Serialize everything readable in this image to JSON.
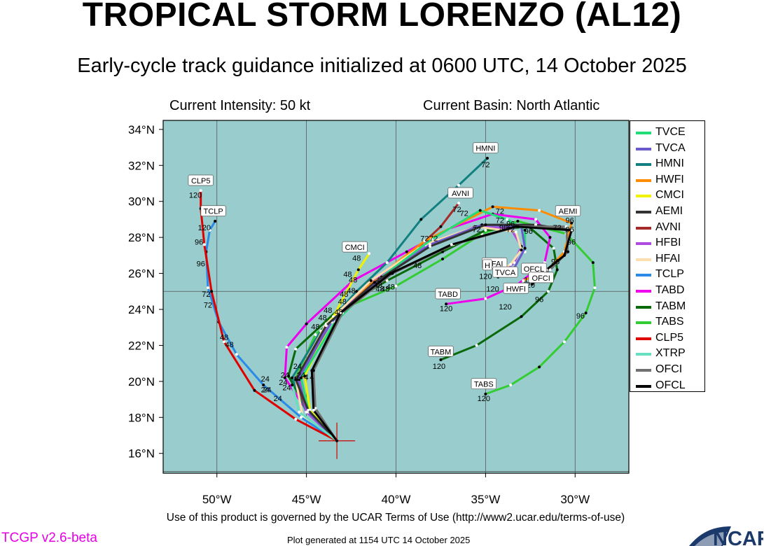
{
  "title": "TROPICAL STORM LORENZO (AL12)",
  "subtitle": "Early-cycle track guidance initialized at 0600 UTC, 14 October 2025",
  "current_intensity": "Current Intensity: 50 kt",
  "current_basin": "Current Basin: North Atlantic",
  "terms": "Use of this product is governed by the UCAR Terms of Use (http://www2.ucar.edu/terms-of-use)",
  "version": "TCGP v2.6-beta",
  "generated": "Plot generated at 1154 UTC   14 October 2025",
  "logo_text": "NCAR",
  "colors": {
    "ocean": "#99cccc",
    "grid": "#555555",
    "storm_marker": "#d00000"
  },
  "map": {
    "lon_ticks": [
      -50,
      -45,
      -40,
      -35,
      -30
    ],
    "lon_labels": [
      "50°W",
      "45°W",
      "40°W",
      "35°W",
      "30°W"
    ],
    "lat_ticks": [
      16,
      18,
      20,
      22,
      24,
      26,
      28,
      30,
      32,
      34
    ],
    "lat_labels": [
      "16°N",
      "18°N",
      "20°N",
      "22°N",
      "24°N",
      "26°N",
      "28°N",
      "30°N",
      "32°N",
      "34°N"
    ],
    "lon_range": [
      -53,
      -27
    ],
    "lat_range": [
      14.9,
      34.5
    ],
    "gridlines": {
      "lon": [
        -50,
        -45,
        -40,
        -35,
        -30
      ],
      "lat": [
        15,
        25
      ]
    },
    "initial_position": {
      "lon": -43.3,
      "lat": 16.7
    }
  },
  "legend": [
    {
      "name": "TVCE",
      "color": "#22dd77"
    },
    {
      "name": "TVCA",
      "color": "#6a5acd"
    },
    {
      "name": "HMNI",
      "color": "#128080"
    },
    {
      "name": "HWFI",
      "color": "#ff8c00"
    },
    {
      "name": "CMCI",
      "color": "#f2f200"
    },
    {
      "name": "AEMI",
      "color": "#333333"
    },
    {
      "name": "AVNI",
      "color": "#a52a2a"
    },
    {
      "name": "HFBI",
      "color": "#b04ae0"
    },
    {
      "name": "HFAI",
      "color": "#ffdead"
    },
    {
      "name": "TCLP",
      "color": "#2a8ae8"
    },
    {
      "name": "TABD",
      "color": "#ee00ee"
    },
    {
      "name": "TABM",
      "color": "#0a6a0a"
    },
    {
      "name": "TABS",
      "color": "#33cc33"
    },
    {
      "name": "CLP5",
      "color": "#e00000"
    },
    {
      "name": "XTRP",
      "color": "#66e0c0"
    },
    {
      "name": "OFCI",
      "color": "#707070"
    },
    {
      "name": "OFCL",
      "color": "#000000"
    }
  ],
  "tracks": [
    {
      "name": "TABS",
      "color": "#33cc33",
      "points": [
        [
          -43.3,
          16.7
        ],
        [
          -44.9,
          18.3
        ],
        [
          -45.6,
          20.2
        ],
        [
          -44.5,
          22.6
        ],
        [
          -42.6,
          24.2
        ],
        [
          -40.0,
          25.3
        ],
        [
          -37.4,
          26.8
        ],
        [
          -35.2,
          28.2
        ],
        [
          -33.2,
          28.9
        ],
        [
          -30.5,
          28.2
        ],
        [
          -29.0,
          26.6
        ],
        [
          -28.9,
          25.2
        ],
        [
          -29.4,
          23.8
        ],
        [
          -30.6,
          22.2
        ],
        [
          -32.0,
          20.8
        ],
        [
          -33.6,
          19.8
        ],
        [
          -35.0,
          19.3
        ]
      ]
    },
    {
      "name": "TABM",
      "color": "#0a6a0a",
      "points": [
        [
          -43.3,
          16.7
        ],
        [
          -44.9,
          18.3
        ],
        [
          -46.0,
          20.3
        ],
        [
          -45.6,
          21.8
        ],
        [
          -43.2,
          24.0
        ],
        [
          -40.5,
          25.6
        ],
        [
          -37.4,
          27.2
        ],
        [
          -35.0,
          28.4
        ],
        [
          -32.6,
          28.6
        ],
        [
          -31.2,
          27.4
        ],
        [
          -31.0,
          26.2
        ],
        [
          -31.5,
          25.0
        ],
        [
          -33.0,
          23.6
        ],
        [
          -35.5,
          22.0
        ],
        [
          -37.5,
          21.2
        ]
      ]
    },
    {
      "name": "TABD",
      "color": "#ee00ee",
      "points": [
        [
          -43.3,
          16.7
        ],
        [
          -45.0,
          18.4
        ],
        [
          -46.2,
          20.2
        ],
        [
          -46.1,
          21.9
        ],
        [
          -45.0,
          23.2
        ],
        [
          -42.4,
          25.6
        ],
        [
          -39.4,
          27.2
        ],
        [
          -37.0,
          28.5
        ],
        [
          -34.6,
          29.3
        ],
        [
          -32.2,
          29.0
        ],
        [
          -31.4,
          28.0
        ],
        [
          -31.7,
          26.6
        ],
        [
          -33.2,
          25.4
        ],
        [
          -35.0,
          24.6
        ],
        [
          -37.2,
          24.3
        ]
      ]
    },
    {
      "name": "HMNI",
      "color": "#128080",
      "points": [
        [
          -43.3,
          16.7
        ],
        [
          -45.0,
          18.3
        ],
        [
          -45.8,
          20.2
        ],
        [
          -44.2,
          22.8
        ],
        [
          -42.2,
          25.0
        ],
        [
          -40.5,
          26.6
        ],
        [
          -38.6,
          29.0
        ],
        [
          -36.5,
          30.9
        ],
        [
          -34.9,
          32.4
        ]
      ]
    },
    {
      "name": "AVNI",
      "color": "#a52a2a",
      "points": [
        [
          -43.3,
          16.7
        ],
        [
          -45.0,
          18.4
        ],
        [
          -45.6,
          20.1
        ],
        [
          -44.0,
          23.0
        ],
        [
          -41.4,
          25.4
        ],
        [
          -38.8,
          27.4
        ],
        [
          -37.5,
          28.6
        ],
        [
          -36.5,
          29.9
        ]
      ]
    },
    {
      "name": "HWFI",
      "color": "#ff8c00",
      "points": [
        [
          -43.3,
          16.7
        ],
        [
          -44.9,
          18.4
        ],
        [
          -45.3,
          20.1
        ],
        [
          -43.6,
          23.4
        ],
        [
          -41.0,
          25.8
        ],
        [
          -38.4,
          27.8
        ],
        [
          -34.6,
          29.7
        ],
        [
          -32.0,
          29.5
        ],
        [
          -30.2,
          28.8
        ],
        [
          -30.6,
          27.2
        ],
        [
          -31.5,
          26.2
        ],
        [
          -32.9,
          25.6
        ]
      ]
    },
    {
      "name": "HFBI",
      "color": "#b04ae0",
      "points": [
        [
          -43.3,
          16.7
        ],
        [
          -45.0,
          18.3
        ],
        [
          -45.4,
          20.1
        ],
        [
          -43.8,
          23.2
        ],
        [
          -41.5,
          25.5
        ],
        [
          -38.3,
          27.5
        ],
        [
          -35.6,
          28.6
        ],
        [
          -33.6,
          28.5
        ],
        [
          -33.0,
          27.5
        ],
        [
          -33.4,
          26.6
        ],
        [
          -34.1,
          26.0
        ]
      ]
    },
    {
      "name": "HFAI",
      "color": "#ffdead",
      "points": [
        [
          -43.3,
          16.7
        ],
        [
          -45.2,
          18.0
        ],
        [
          -45.6,
          20.1
        ],
        [
          -43.9,
          23.2
        ],
        [
          -41.4,
          25.6
        ],
        [
          -38.4,
          27.6
        ],
        [
          -35.5,
          28.6
        ],
        [
          -33.3,
          28.3
        ],
        [
          -33.0,
          27.3
        ],
        [
          -33.6,
          26.5
        ],
        [
          -34.4,
          26.1
        ]
      ]
    },
    {
      "name": "CMCI",
      "color": "#f2f200",
      "points": [
        [
          -43.3,
          16.7
        ],
        [
          -44.8,
          18.4
        ],
        [
          -45.1,
          20.3
        ],
        [
          -43.5,
          23.6
        ],
        [
          -42.1,
          26.2
        ],
        [
          -41.5,
          27.1
        ]
      ]
    },
    {
      "name": "TVCE",
      "color": "#22dd77",
      "points": [
        [
          -43.3,
          16.7
        ],
        [
          -44.9,
          18.4
        ],
        [
          -45.3,
          20.2
        ],
        [
          -43.4,
          23.3
        ],
        [
          -40.8,
          25.8
        ],
        [
          -38.0,
          27.9
        ],
        [
          -35.3,
          29.5
        ],
        [
          -33.8,
          29.0
        ],
        [
          -32.8,
          28.4
        ],
        [
          -32.8,
          27.2
        ]
      ]
    },
    {
      "name": "TVCA",
      "color": "#6a5acd",
      "points": [
        [
          -43.3,
          16.7
        ],
        [
          -44.9,
          18.3
        ],
        [
          -45.5,
          20.1
        ],
        [
          -43.6,
          23.3
        ],
        [
          -41.0,
          25.6
        ],
        [
          -38.1,
          27.6
        ],
        [
          -35.2,
          28.7
        ],
        [
          -33.0,
          28.6
        ],
        [
          -32.8,
          27.4
        ],
        [
          -33.4,
          26.3
        ],
        [
          -34.3,
          25.8
        ]
      ]
    },
    {
      "name": "AEMI",
      "color": "#333333",
      "points": [
        [
          -43.3,
          16.7
        ],
        [
          -44.9,
          18.4
        ],
        [
          -45.6,
          20.1
        ],
        [
          -43.9,
          23.1
        ],
        [
          -41.2,
          25.5
        ],
        [
          -38.1,
          27.5
        ],
        [
          -35.0,
          28.7
        ],
        [
          -32.2,
          28.7
        ],
        [
          -30.2,
          28.4
        ]
      ]
    },
    {
      "name": "TCLP",
      "color": "#2a8ae8",
      "points": [
        [
          -43.3,
          16.7
        ],
        [
          -45.3,
          18.0
        ],
        [
          -47.4,
          19.8
        ],
        [
          -48.9,
          21.5
        ],
        [
          -49.9,
          23.3
        ],
        [
          -50.5,
          25.2
        ],
        [
          -50.6,
          27.2
        ],
        [
          -50.4,
          28.4
        ],
        [
          -50.1,
          28.9
        ]
      ]
    },
    {
      "name": "CLP5",
      "color": "#e00000",
      "points": [
        [
          -43.3,
          16.7
        ],
        [
          -45.6,
          17.9
        ],
        [
          -47.9,
          19.5
        ],
        [
          -49.6,
          22.2
        ],
        [
          -50.3,
          25.0
        ],
        [
          -50.7,
          27.6
        ],
        [
          -50.9,
          29.6
        ],
        [
          -50.9,
          30.6
        ]
      ]
    },
    {
      "name": "XTRP",
      "color": "#66e0c0",
      "points": [
        [
          -43.3,
          16.7
        ],
        [
          -45.4,
          18.3
        ],
        [
          -45.8,
          19.8
        ]
      ]
    },
    {
      "name": "OFCI",
      "color": "#707070",
      "points": [
        [
          -43.3,
          16.7
        ],
        [
          -44.5,
          18.5
        ],
        [
          -44.6,
          20.6
        ],
        [
          -43.0,
          23.8
        ],
        [
          -40.2,
          26.0
        ],
        [
          -36.8,
          27.6
        ],
        [
          -33.2,
          28.6
        ],
        [
          -30.5,
          28.6
        ],
        [
          -30.4,
          27.2
        ],
        [
          -31.4,
          26.2
        ],
        [
          -32.4,
          25.6
        ]
      ]
    },
    {
      "name": "OFCL",
      "color": "#000000",
      "points": [
        [
          -43.3,
          16.7
        ],
        [
          -44.6,
          18.4
        ],
        [
          -44.7,
          20.6
        ],
        [
          -43.1,
          23.8
        ],
        [
          -40.3,
          26.0
        ],
        [
          -36.9,
          27.6
        ],
        [
          -33.3,
          28.6
        ],
        [
          -30.2,
          28.4
        ],
        [
          -30.6,
          27.0
        ],
        [
          -31.6,
          26.2
        ],
        [
          -32.4,
          25.4
        ]
      ]
    }
  ],
  "hour_labels": [
    {
      "text": "24",
      "lon": -47.3,
      "lat": 20.0
    },
    {
      "text": "24",
      "lon": -47.3,
      "lat": 19.4
    },
    {
      "text": "24",
      "lon": -47.2,
      "lat": 19.4
    },
    {
      "text": "24",
      "lon": -46.2,
      "lat": 20.2
    },
    {
      "text": "24",
      "lon": -46.3,
      "lat": 19.8
    },
    {
      "text": "24",
      "lon": -46.1,
      "lat": 19.5
    },
    {
      "text": "24",
      "lon": -46.6,
      "lat": 18.9
    },
    {
      "text": "24",
      "lon": -45.5,
      "lat": 20.7
    },
    {
      "text": "24",
      "lon": -45.3,
      "lat": 20.2
    },
    {
      "text": "4",
      "lon": -45.0,
      "lat": 20.1
    },
    {
      "text": "4",
      "lon": -44.7,
      "lat": 20.1
    },
    {
      "text": "48",
      "lon": -49.6,
      "lat": 22.3
    },
    {
      "text": "48",
      "lon": -49.3,
      "lat": 21.9
    },
    {
      "text": "48",
      "lon": -44.5,
      "lat": 22.9
    },
    {
      "text": "48",
      "lon": -44.1,
      "lat": 23.4
    },
    {
      "text": "48",
      "lon": -43.8,
      "lat": 23.8
    },
    {
      "text": "48",
      "lon": -43.2,
      "lat": 23.7
    },
    {
      "text": "48",
      "lon": -43.0,
      "lat": 24.3
    },
    {
      "text": "48",
      "lon": -42.9,
      "lat": 24.7
    },
    {
      "text": "48",
      "lon": -42.5,
      "lat": 24.9
    },
    {
      "text": "48",
      "lon": -42.7,
      "lat": 25.8
    },
    {
      "text": "48",
      "lon": -42.4,
      "lat": 25.5
    },
    {
      "text": "48",
      "lon": -42.2,
      "lat": 26.7
    },
    {
      "text": "48",
      "lon": -41.0,
      "lat": 25.2
    },
    {
      "text": "48",
      "lon": -40.9,
      "lat": 25.0
    },
    {
      "text": "48",
      "lon": -40.6,
      "lat": 25.0
    },
    {
      "text": "48",
      "lon": -40.3,
      "lat": 25.1
    },
    {
      "text": "48",
      "lon": -38.8,
      "lat": 26.3
    },
    {
      "text": "72",
      "lon": -50.6,
      "lat": 24.7
    },
    {
      "text": "72",
      "lon": -50.5,
      "lat": 24.1
    },
    {
      "text": "72",
      "lon": -38.4,
      "lat": 27.8
    },
    {
      "text": "72",
      "lon": -37.9,
      "lat": 27.8
    },
    {
      "text": "72",
      "lon": -36.6,
      "lat": 29.4
    },
    {
      "text": "72",
      "lon": -36.2,
      "lat": 29.2
    },
    {
      "text": "72",
      "lon": -35.5,
      "lat": 28.3
    },
    {
      "text": "72",
      "lon": -35.0,
      "lat": 31.9
    },
    {
      "text": "72",
      "lon": -34.2,
      "lat": 29.3
    },
    {
      "text": "72",
      "lon": -34.2,
      "lat": 28.8
    },
    {
      "text": "72",
      "lon": -33.6,
      "lat": 28.3
    },
    {
      "text": "72",
      "lon": -31.0,
      "lat": 28.4
    },
    {
      "text": "96",
      "lon": -51.0,
      "lat": 27.6
    },
    {
      "text": "96",
      "lon": -50.9,
      "lat": 26.4
    },
    {
      "text": "96",
      "lon": -34.0,
      "lat": 28.4
    },
    {
      "text": "96",
      "lon": -33.6,
      "lat": 28.6
    },
    {
      "text": "96",
      "lon": -32.6,
      "lat": 28.2
    },
    {
      "text": "96",
      "lon": -32.0,
      "lat": 24.4
    },
    {
      "text": "96",
      "lon": -31.1,
      "lat": 26.5
    },
    {
      "text": "96",
      "lon": -30.3,
      "lat": 28.8
    },
    {
      "text": "96",
      "lon": -30.3,
      "lat": 28.3
    },
    {
      "text": "96",
      "lon": -30.2,
      "lat": 27.6
    },
    {
      "text": "96",
      "lon": -29.7,
      "lat": 23.5
    },
    {
      "text": "120",
      "lon": -51.2,
      "lat": 30.2
    },
    {
      "text": "120",
      "lon": -50.7,
      "lat": 28.4
    },
    {
      "text": "120",
      "lon": -35.0,
      "lat": 25.7
    },
    {
      "text": "120",
      "lon": -34.6,
      "lat": 25.0
    },
    {
      "text": "120",
      "lon": -33.9,
      "lat": 24.0
    },
    {
      "text": "120",
      "lon": -32.6,
      "lat": 25.2
    },
    {
      "text": "120",
      "lon": -32.5,
      "lat": 25.5
    },
    {
      "text": "120",
      "lon": -37.2,
      "lat": 23.9
    },
    {
      "text": "120",
      "lon": -37.6,
      "lat": 20.7
    },
    {
      "text": "120",
      "lon": -35.1,
      "lat": 18.9
    }
  ],
  "track_labels": [
    {
      "text": "HMNI",
      "lon": -35.0,
      "lat": 32.8
    },
    {
      "text": "AVNI",
      "lon": -36.4,
      "lat": 30.3
    },
    {
      "text": "CLP5",
      "lon": -50.9,
      "lat": 31.0
    },
    {
      "text": "TCLP",
      "lon": -50.2,
      "lat": 29.3
    },
    {
      "text": "CMCI",
      "lon": -42.3,
      "lat": 27.3
    },
    {
      "text": "AEMI",
      "lon": -30.4,
      "lat": 29.3
    },
    {
      "text": "HFAI",
      "lon": -34.5,
      "lat": 26.4
    },
    {
      "text": "H",
      "lon": -34.9,
      "lat": 26.3
    },
    {
      "text": "TVCA",
      "lon": -33.9,
      "lat": 25.9
    },
    {
      "text": "OFCL",
      "lon": -32.3,
      "lat": 26.1
    },
    {
      "text": "OFCI",
      "lon": -31.9,
      "lat": 25.6
    },
    {
      "text": "HWFI",
      "lon": -33.3,
      "lat": 25.0
    },
    {
      "text": "TABD",
      "lon": -37.1,
      "lat": 24.7
    },
    {
      "text": "TABM",
      "lon": -37.5,
      "lat": 21.5
    },
    {
      "text": "TABS",
      "lon": -35.1,
      "lat": 19.7
    }
  ]
}
